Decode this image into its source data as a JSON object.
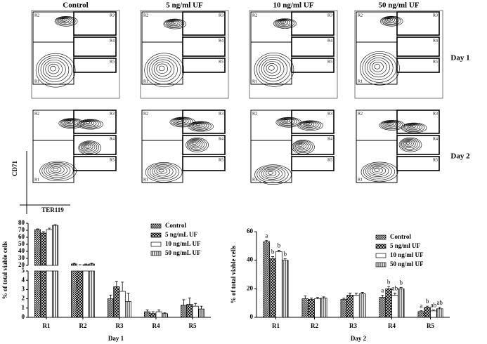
{
  "panels": {
    "columns": [
      "Control",
      "5 ng/ml UF",
      "10 ng/ml UF",
      "50 ng/ml UF"
    ],
    "rows": [
      "Day 1",
      "Day 2"
    ],
    "gates": [
      "R1",
      "R2",
      "R3",
      "R4",
      "R5"
    ],
    "x_axis": "TER119",
    "y_axis": "CD71"
  },
  "chart_data": [
    {
      "type": "bar",
      "broken_axis": true,
      "ylabel": "% of total viable cells",
      "xlabel": "Day 1",
      "categories": [
        "R1",
        "R2",
        "R3",
        "R4",
        "R5"
      ],
      "series": [
        {
          "name": "Control",
          "fill": "checker",
          "values": [
            71,
            22,
            2.0,
            0.6,
            1.3
          ],
          "errors": [
            1,
            1,
            0.4,
            0.2,
            0.6
          ]
        },
        {
          "name": "5 ng/mL UF",
          "fill": "cross",
          "values": [
            66,
            20,
            3.3,
            0.4,
            1.4
          ],
          "errors": [
            2,
            1,
            0.6,
            0.2,
            0.7
          ]
        },
        {
          "name": "10 ng/mL UF",
          "fill": "none",
          "values": [
            71,
            21,
            2.8,
            0.6,
            1.2
          ],
          "errors": [
            2,
            1,
            1.0,
            0.2,
            0.3
          ]
        },
        {
          "name": "50 ng/mL UF",
          "fill": "stripes",
          "values": [
            77,
            22,
            1.7,
            0.4,
            0.9
          ],
          "errors": [
            1,
            1,
            0.9,
            0.1,
            0.3
          ]
        }
      ],
      "ylim_upper": [
        20,
        80
      ],
      "yticks_upper": [
        20,
        30,
        40,
        50,
        60,
        70,
        80
      ],
      "ylim": [
        0,
        5
      ],
      "yticks": [
        0,
        1,
        2,
        3,
        4,
        5
      ]
    },
    {
      "type": "bar",
      "ylabel": "% of total viable cells",
      "xlabel": "Day 2",
      "categories": [
        "R1",
        "R2",
        "R3",
        "R4",
        "R5"
      ],
      "series": [
        {
          "name": "Control",
          "fill": "checker",
          "values": [
            53,
            13,
            12.5,
            14,
            4
          ],
          "errors": [
            0.8,
            2,
            0.8,
            1.5,
            0.6
          ],
          "annotations": [
            "a",
            null,
            null,
            "a",
            "a"
          ]
        },
        {
          "name": "5 ng/ml UF",
          "fill": "cross",
          "values": [
            41,
            12.5,
            15.5,
            20,
            7
          ],
          "errors": [
            1.5,
            1,
            1.5,
            1.5,
            0.8
          ],
          "annotations": [
            "b",
            null,
            null,
            "b",
            "b"
          ]
        },
        {
          "name": "10 ng/ml UF",
          "fill": "none",
          "values": [
            46,
            13,
            15.5,
            15.5,
            4.5
          ],
          "errors": [
            1,
            1,
            1.5,
            1.5,
            0.6
          ],
          "annotations": [
            "b",
            null,
            null,
            "ab",
            "ab"
          ]
        },
        {
          "name": "50 ng/ml UF",
          "fill": "stripes",
          "values": [
            40,
            13.5,
            16.5,
            20,
            6
          ],
          "errors": [
            1,
            0.8,
            1,
            1,
            1
          ],
          "annotations": [
            "b",
            null,
            null,
            "b",
            "ab"
          ]
        }
      ],
      "ylim": [
        0,
        60
      ],
      "yticks": [
        0,
        20,
        40,
        60
      ]
    }
  ]
}
